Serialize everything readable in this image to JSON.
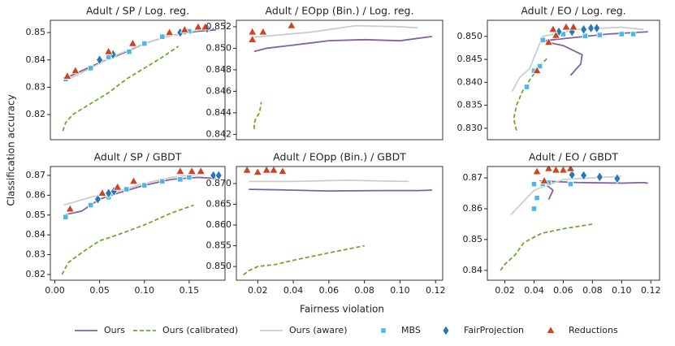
{
  "xlabel": "Fairness violation",
  "ylabel": "Classification accuracy",
  "chart_data": [
    {
      "type": "line",
      "title": "Adult / SP / Log. reg.",
      "xlim": [
        -0.005,
        0.19
      ],
      "ylim": [
        0.8108,
        0.8545
      ],
      "yticks": [
        0.82,
        0.83,
        0.84,
        0.85
      ],
      "series": [
        {
          "name": "Ours",
          "color": "#8062a0",
          "marker": "solid-line",
          "x": [
            0.01,
            0.03,
            0.05,
            0.08,
            0.1,
            0.13,
            0.16,
            0.18
          ],
          "values": [
            0.833,
            0.836,
            0.839,
            0.843,
            0.846,
            0.849,
            0.8505,
            0.851
          ]
        },
        {
          "name": "Ours (calibrated)",
          "color": "#6aaa2e",
          "marker": "dashed-line",
          "x": [
            0.009,
            0.012,
            0.02,
            0.04,
            0.06,
            0.08,
            0.1,
            0.12,
            0.138
          ],
          "values": [
            0.814,
            0.817,
            0.82,
            0.824,
            0.828,
            0.833,
            0.837,
            0.841,
            0.845
          ]
        },
        {
          "name": "Ours (aware)",
          "color": "#cccccc",
          "marker": "solid-line",
          "x": [
            0.01,
            0.04,
            0.07,
            0.1,
            0.13,
            0.17
          ],
          "values": [
            0.832,
            0.837,
            0.842,
            0.846,
            0.849,
            0.8515
          ]
        },
        {
          "name": "MBS",
          "color": "#4db8e8",
          "marker": "square",
          "x": [
            0.012,
            0.04,
            0.06,
            0.083,
            0.1,
            0.12,
            0.15
          ],
          "values": [
            0.833,
            0.837,
            0.841,
            0.843,
            0.846,
            0.8485,
            0.8505
          ]
        },
        {
          "name": "FairProjection",
          "color": "#2878b8",
          "marker": "diamond",
          "x": [
            0.05,
            0.065,
            0.14,
            0.17
          ],
          "values": [
            0.84,
            0.842,
            0.85,
            0.8515
          ]
        },
        {
          "name": "Reductions",
          "color": "#cc4422",
          "marker": "triangle",
          "x": [
            0.014,
            0.023,
            0.06,
            0.087,
            0.128,
            0.145,
            0.16,
            0.168
          ],
          "values": [
            0.834,
            0.836,
            0.843,
            0.846,
            0.85,
            0.851,
            0.852,
            0.852
          ]
        }
      ]
    },
    {
      "type": "line",
      "title": "Adult / EOpp (Bin.) / Log. reg.",
      "xlim": [
        0.008,
        0.124
      ],
      "ylim": [
        0.8415,
        0.8526
      ],
      "yticks": [
        0.842,
        0.844,
        0.846,
        0.848,
        {
          "value": 0.85,
          "label": "0.850"
        },
        0.852
      ],
      "series": [
        {
          "color": "#8062a0",
          "marker": "solid-line",
          "x": [
            0.018,
            0.025,
            0.04,
            0.06,
            0.08,
            0.1,
            0.118
          ],
          "values": [
            0.8497,
            0.85,
            0.8503,
            0.8507,
            0.8508,
            0.8507,
            0.8511
          ]
        },
        {
          "color": "#6aaa2e",
          "marker": "dashed-line",
          "x": [
            0.018,
            0.018,
            0.019,
            0.021,
            0.022
          ],
          "values": [
            0.8425,
            0.843,
            0.8435,
            0.844,
            0.845
          ]
        },
        {
          "color": "#cccccc",
          "marker": "solid-line",
          "x": [
            0.016,
            0.03,
            0.05,
            0.075,
            0.1,
            0.11
          ],
          "values": [
            0.851,
            0.8512,
            0.8515,
            0.8521,
            0.852,
            0.8519
          ]
        },
        {
          "color": "#cc4422",
          "marker": "triangle",
          "x": [
            0.017,
            0.017,
            0.023,
            0.039
          ],
          "values": [
            0.8508,
            0.8515,
            0.8515,
            0.8521
          ]
        }
      ]
    },
    {
      "type": "line",
      "title": "Adult / EO / Log. reg.",
      "xlim": [
        0.008,
        0.126
      ],
      "ylim": [
        0.8275,
        0.8535
      ],
      "yticks": [
        {
          "value": 0.83,
          "label": "0.830"
        },
        0.835,
        {
          "value": 0.84,
          "label": "0.840"
        },
        0.845,
        {
          "value": 0.85,
          "label": "0.850"
        }
      ],
      "series": [
        {
          "color": "#8062a0",
          "marker": "solid-line",
          "x": [
            0.065,
            0.072,
            0.073,
            0.06,
            0.045,
            0.06,
            0.09,
            0.118
          ],
          "values": [
            0.8415,
            0.844,
            0.846,
            0.848,
            0.849,
            0.8495,
            0.8505,
            0.851
          ]
        },
        {
          "color": "#6aaa2e",
          "marker": "dashed-line",
          "x": [
            0.028,
            0.026,
            0.028,
            0.032,
            0.038,
            0.045,
            0.05
          ],
          "values": [
            0.8295,
            0.832,
            0.835,
            0.838,
            0.841,
            0.844,
            0.8455
          ]
        },
        {
          "color": "#cccccc",
          "marker": "solid-line",
          "x": [
            0.025,
            0.03,
            0.037,
            0.042,
            0.046,
            0.07,
            0.1,
            0.115
          ],
          "values": [
            0.838,
            0.841,
            0.843,
            0.847,
            0.85,
            0.8515,
            0.852,
            0.8515
          ]
        },
        {
          "color": "#4db8e8",
          "marker": "square",
          "x": [
            0.035,
            0.04,
            0.044,
            0.046,
            0.06,
            0.075,
            0.085,
            0.1,
            0.108
          ],
          "values": [
            0.839,
            0.8425,
            0.8435,
            0.8492,
            0.8505,
            0.8501,
            0.8503,
            0.8505,
            0.8505
          ]
        },
        {
          "color": "#2878b8",
          "marker": "diamond",
          "x": [
            0.057,
            0.066,
            0.074,
            0.079,
            0.083
          ],
          "values": [
            0.851,
            0.851,
            0.8515,
            0.8518,
            0.8518
          ]
        },
        {
          "color": "#cc4422",
          "marker": "triangle",
          "x": [
            0.042,
            0.05,
            0.055,
            0.053,
            0.062,
            0.067
          ],
          "values": [
            0.8425,
            0.8487,
            0.8502,
            0.8515,
            0.852,
            0.852
          ]
        }
      ]
    },
    {
      "type": "line",
      "title": "Adult / SP / GBDT",
      "xlim": [
        -0.005,
        0.19
      ],
      "ylim": [
        0.8171,
        0.8745
      ],
      "xticks": [
        {
          "value": 0,
          "label": "0.00"
        },
        0.05,
        {
          "value": 0.1,
          "label": "0.10"
        },
        0.15
      ],
      "yticks": [
        0.82,
        0.83,
        0.84,
        0.85,
        0.86,
        0.87
      ],
      "series": [
        {
          "color": "#8062a0",
          "marker": "solid-line",
          "x": [
            0.01,
            0.03,
            0.05,
            0.07,
            0.1,
            0.13,
            0.16,
            0.18
          ],
          "values": [
            0.85,
            0.852,
            0.858,
            0.861,
            0.865,
            0.868,
            0.869,
            0.8685
          ]
        },
        {
          "color": "#6aaa2e",
          "marker": "dashed-line",
          "x": [
            0.008,
            0.015,
            0.03,
            0.05,
            0.07,
            0.1,
            0.13,
            0.155
          ],
          "values": [
            0.82,
            0.826,
            0.831,
            0.837,
            0.84,
            0.845,
            0.851,
            0.855
          ]
        },
        {
          "color": "#cccccc",
          "marker": "solid-line",
          "x": [
            0.01,
            0.04,
            0.07,
            0.1,
            0.13,
            0.16
          ],
          "values": [
            0.855,
            0.859,
            0.862,
            0.866,
            0.869,
            0.8705
          ]
        },
        {
          "color": "#4db8e8",
          "marker": "square",
          "x": [
            0.012,
            0.04,
            0.06,
            0.08,
            0.1,
            0.12,
            0.14,
            0.15
          ],
          "values": [
            0.849,
            0.855,
            0.859,
            0.863,
            0.865,
            0.867,
            0.868,
            0.869
          ]
        },
        {
          "color": "#2878b8",
          "marker": "diamond",
          "x": [
            0.048,
            0.06,
            0.066,
            0.177,
            0.183
          ],
          "values": [
            0.858,
            0.861,
            0.862,
            0.87,
            0.87
          ]
        },
        {
          "color": "#cc4422",
          "marker": "triangle",
          "x": [
            0.017,
            0.053,
            0.07,
            0.088,
            0.14,
            0.153,
            0.163
          ],
          "values": [
            0.853,
            0.861,
            0.864,
            0.867,
            0.872,
            0.872,
            0.872
          ]
        }
      ]
    },
    {
      "type": "line",
      "title": "Adult / EOpp (Bin.) / GBDT",
      "xlim": [
        0.008,
        0.124
      ],
      "ylim": [
        0.8467,
        0.8741
      ],
      "xticks": [
        0.02,
        0.04,
        0.06,
        0.08,
        {
          "value": 0.1,
          "label": "0.10"
        },
        0.12
      ],
      "yticks": [
        {
          "value": 0.85,
          "label": "0.850"
        },
        0.855,
        {
          "value": 0.86,
          "label": "0.860"
        },
        0.865,
        {
          "value": 0.87,
          "label": "0.870"
        }
      ],
      "series": [
        {
          "color": "#8062a0",
          "marker": "solid-line",
          "x": [
            0.015,
            0.03,
            0.06,
            0.09,
            0.11,
            0.118
          ],
          "values": [
            0.8686,
            0.8685,
            0.8682,
            0.8683,
            0.8683,
            0.8684
          ]
        },
        {
          "color": "#6aaa2e",
          "marker": "dashed-line",
          "x": [
            0.012,
            0.015,
            0.02,
            0.03,
            0.04,
            0.06,
            0.08
          ],
          "values": [
            0.848,
            0.849,
            0.85,
            0.8505,
            0.8515,
            0.8533,
            0.855
          ]
        },
        {
          "color": "#cccccc",
          "marker": "solid-line",
          "x": [
            0.015,
            0.04,
            0.07,
            0.09,
            0.105
          ],
          "values": [
            0.8705,
            0.8705,
            0.8708,
            0.8706,
            0.8705
          ]
        },
        {
          "color": "#cc4422",
          "marker": "triangle",
          "x": [
            0.014,
            0.02,
            0.025,
            0.029,
            0.034
          ],
          "values": [
            0.8732,
            0.8727,
            0.8732,
            0.8732,
            0.8729
          ]
        }
      ]
    },
    {
      "type": "line",
      "title": "Adult / EO / GBDT",
      "xlim": [
        0.008,
        0.126
      ],
      "ylim": [
        0.8368,
        0.8737
      ],
      "xticks": [
        0.02,
        0.04,
        0.06,
        0.08,
        {
          "value": 0.1,
          "label": "0.10"
        },
        0.12
      ],
      "yticks": [
        0.84,
        0.85,
        0.86,
        0.87
      ],
      "series": [
        {
          "color": "#8062a0",
          "marker": "solid-line",
          "x": [
            0.05,
            0.053,
            0.045,
            0.07,
            0.1,
            0.115,
            0.118
          ],
          "values": [
            0.863,
            0.866,
            0.869,
            0.8685,
            0.8683,
            0.8685,
            0.8683
          ]
        },
        {
          "color": "#6aaa2e",
          "marker": "dashed-line",
          "x": [
            0.017,
            0.02,
            0.027,
            0.033,
            0.045,
            0.06,
            0.08
          ],
          "values": [
            0.84,
            0.842,
            0.845,
            0.849,
            0.852,
            0.8535,
            0.855
          ]
        },
        {
          "color": "#cccccc",
          "marker": "solid-line",
          "x": [
            0.024,
            0.03,
            0.04,
            0.06,
            0.08,
            0.1
          ],
          "values": [
            0.858,
            0.861,
            0.866,
            0.8695,
            0.87,
            0.8705
          ]
        },
        {
          "color": "#4db8e8",
          "marker": "square",
          "x": [
            0.04,
            0.042,
            0.04,
            0.046,
            0.05,
            0.065
          ],
          "values": [
            0.86,
            0.8635,
            0.868,
            0.868,
            0.8685,
            0.868
          ]
        },
        {
          "color": "#2878b8",
          "marker": "diamond",
          "x": [
            0.066,
            0.074,
            0.085,
            0.097
          ],
          "values": [
            0.871,
            0.8708,
            0.8703,
            0.8698
          ]
        },
        {
          "color": "#cc4422",
          "marker": "triangle",
          "x": [
            0.042,
            0.047,
            0.05,
            0.055,
            0.06,
            0.065
          ],
          "values": [
            0.872,
            0.869,
            0.873,
            0.8725,
            0.8725,
            0.873
          ]
        }
      ]
    }
  ]
}
